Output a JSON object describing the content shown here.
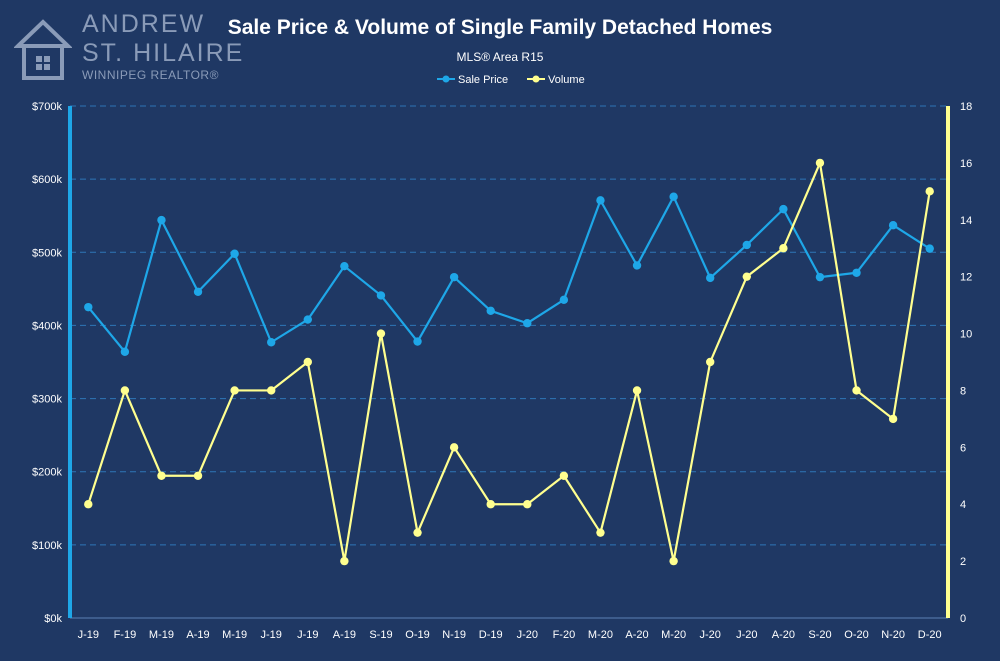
{
  "logo": {
    "name_line1": "ANDREW",
    "name_line2": "ST. HILAIRE",
    "tagline": "WINNIPEG REALTOR®",
    "icon": "house-icon"
  },
  "colors": {
    "background": "#1f3864",
    "sale_price": "#1ea7e8",
    "volume": "#ffff8f",
    "grid": "#2e75b6",
    "text": "#ffffff"
  },
  "chart_data": {
    "type": "line",
    "title": "Sale Price & Volume of Single Family Detached Homes",
    "subtitle": "MLS® Area R15",
    "legend_position": "top-center",
    "grid": true,
    "categories": [
      "J-19",
      "F-19",
      "M-19",
      "A-19",
      "M-19",
      "J-19",
      "J-19",
      "A-19",
      "S-19",
      "O-19",
      "N-19",
      "D-19",
      "J-20",
      "F-20",
      "M-20",
      "A-20",
      "M-20",
      "J-20",
      "J-20",
      "A-20",
      "S-20",
      "O-20",
      "N-20",
      "D-20"
    ],
    "y_left": {
      "ylim": [
        0,
        700000
      ],
      "ticks": [
        0,
        100000,
        200000,
        300000,
        400000,
        500000,
        600000,
        700000
      ],
      "tick_labels": [
        "$0k",
        "$100k",
        "$200k",
        "$300k",
        "$400k",
        "$500k",
        "$600k",
        "$700k"
      ]
    },
    "y_right": {
      "ylim": [
        0,
        18
      ],
      "ticks": [
        0,
        2,
        4,
        6,
        8,
        10,
        12,
        14,
        16,
        18
      ],
      "tick_labels": [
        "0",
        "2",
        "4",
        "6",
        "8",
        "10",
        "12",
        "14",
        "16",
        "18"
      ]
    },
    "series": [
      {
        "name": "Sale Price",
        "axis": "left",
        "color": "#1ea7e8",
        "values": [
          425000,
          364000,
          544000,
          446000,
          498000,
          377000,
          408000,
          481000,
          441000,
          378000,
          466000,
          420000,
          403000,
          435000,
          571000,
          482000,
          576000,
          465000,
          510000,
          559000,
          466000,
          472000,
          537000,
          505000
        ]
      },
      {
        "name": "Volume",
        "axis": "right",
        "color": "#ffff8f",
        "values": [
          4,
          8,
          5,
          5,
          8,
          8,
          9,
          2,
          10,
          3,
          6,
          4,
          4,
          5,
          3,
          8,
          2,
          9,
          12,
          13,
          16,
          8,
          7,
          15
        ]
      }
    ]
  }
}
